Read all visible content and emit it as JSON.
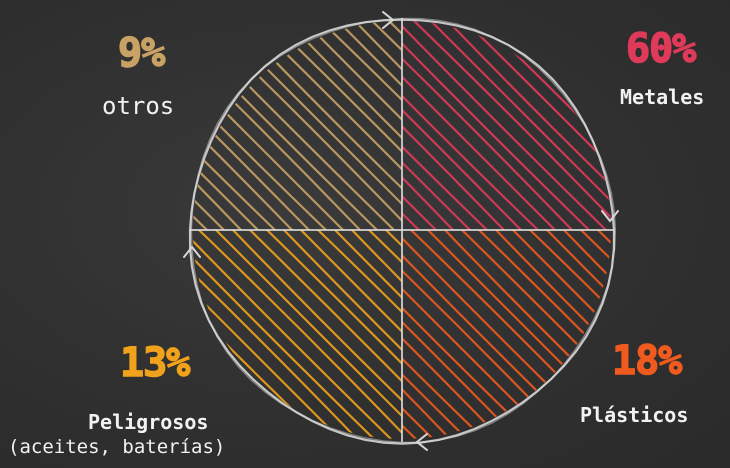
{
  "chart_data": {
    "type": "pie",
    "slices": [
      {
        "label": "Metales",
        "value": 60,
        "pct_text": "60%",
        "color": "#e03a5a"
      },
      {
        "label": "Plásticos",
        "value": 18,
        "pct_text": "18%",
        "color": "#ef5a1e"
      },
      {
        "label": "Peligrosos",
        "sublabel": "(aceites, baterías)",
        "value": 13,
        "pct_text": "13%",
        "color": "#f0a21a"
      },
      {
        "label": "otros",
        "value": 9,
        "pct_text": "9%",
        "color": "#c8a264"
      }
    ]
  },
  "colors": {
    "background": "#2f2f2f",
    "circle_outline": "#d8d8d8",
    "label_text": "#f2f2f2"
  }
}
